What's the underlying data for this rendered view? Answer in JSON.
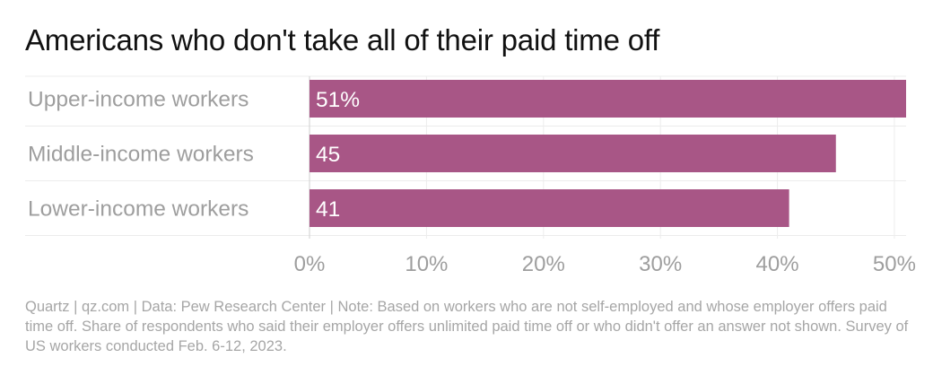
{
  "title": "Americans who don't take all of their paid time off",
  "chart_data": {
    "type": "bar",
    "orientation": "horizontal",
    "categories": [
      "Upper-income workers",
      "Middle-income workers",
      "Lower-income workers"
    ],
    "values": [
      51,
      45,
      41
    ],
    "data_labels": [
      "51%",
      "45",
      "41"
    ],
    "xlim": [
      0,
      51
    ],
    "x_ticks": [
      0,
      10,
      20,
      30,
      40,
      50
    ],
    "x_tick_labels": [
      "0%",
      "10%",
      "20%",
      "30%",
      "40%",
      "50%"
    ],
    "grid": true,
    "bar_color": "#a85686"
  },
  "footnote": "Quartz | qz.com | Data: Pew Research Center | Note: Based on workers who are not self-employed and whose employer offers paid time off. Share of respondents who said their employer offers unlimited paid time off or who didn't offer an answer not shown. Survey of US workers conducted Feb. 6-12, 2023."
}
